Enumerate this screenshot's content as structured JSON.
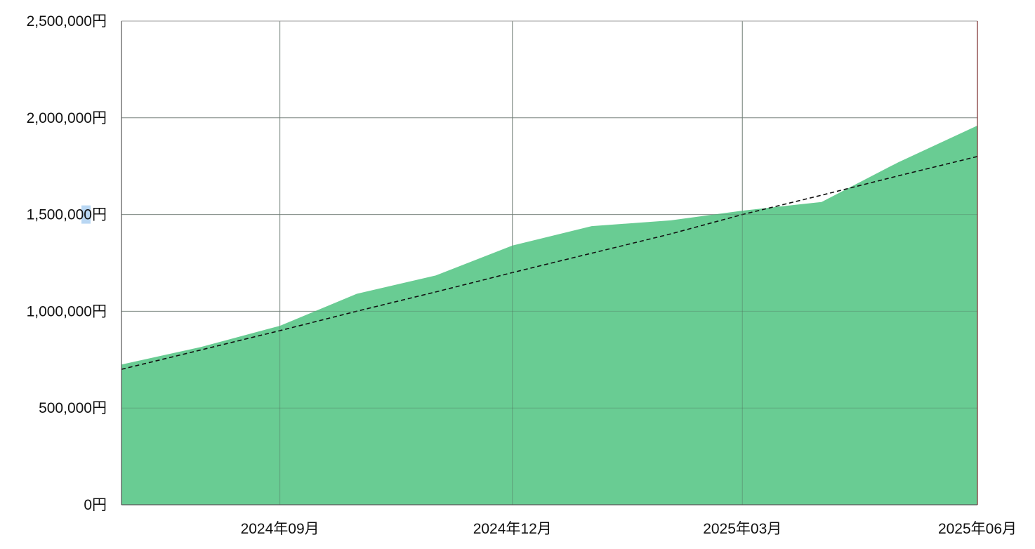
{
  "chart_data": {
    "type": "area",
    "title": "",
    "xlabel": "",
    "ylabel": "",
    "x_range": [
      "2024-07-01",
      "2025-06-01"
    ],
    "ylim": [
      0,
      2500000
    ],
    "y_ticks": [
      {
        "value": 0,
        "label": "0円"
      },
      {
        "value": 500000,
        "label": "500,000円"
      },
      {
        "value": 1000000,
        "label": "1,000,000円"
      },
      {
        "value": 1500000,
        "label": "1,500,000円"
      },
      {
        "value": 2000000,
        "label": "2,000,000円"
      },
      {
        "value": 2500000,
        "label": "2,500,000円"
      }
    ],
    "x_ticks": [
      {
        "date": "2024-09-01",
        "label": "2024年09月"
      },
      {
        "date": "2024-12-01",
        "label": "2024年12月"
      },
      {
        "date": "2025-03-01",
        "label": "2025年03月"
      },
      {
        "date": "2025-06-01",
        "label": "2025年06月"
      }
    ],
    "series": [
      {
        "kind": "area",
        "color": "#69cc93",
        "points": [
          {
            "x": "2024-07-01",
            "y": 725000
          },
          {
            "x": "2024-08-01",
            "y": 815000
          },
          {
            "x": "2024-09-01",
            "y": 925000
          },
          {
            "x": "2024-10-01",
            "y": 1090000
          },
          {
            "x": "2024-11-01",
            "y": 1185000
          },
          {
            "x": "2024-12-01",
            "y": 1340000
          },
          {
            "x": "2025-01-01",
            "y": 1440000
          },
          {
            "x": "2025-02-01",
            "y": 1470000
          },
          {
            "x": "2025-03-01",
            "y": 1520000
          },
          {
            "x": "2025-04-01",
            "y": 1565000
          },
          {
            "x": "2025-05-01",
            "y": 1770000
          },
          {
            "x": "2025-06-01",
            "y": 1960000
          }
        ]
      },
      {
        "kind": "line",
        "style": "dashed",
        "color": "#111111",
        "points": [
          {
            "x": "2024-07-01",
            "y": 700000
          },
          {
            "x": "2024-08-01",
            "y": 800000
          },
          {
            "x": "2024-09-01",
            "y": 900000
          },
          {
            "x": "2024-10-01",
            "y": 1000000
          },
          {
            "x": "2024-11-01",
            "y": 1100000
          },
          {
            "x": "2024-12-01",
            "y": 1200000
          },
          {
            "x": "2025-01-01",
            "y": 1300000
          },
          {
            "x": "2025-02-01",
            "y": 1400000
          },
          {
            "x": "2025-03-01",
            "y": 1500000
          },
          {
            "x": "2025-04-01",
            "y": 1600000
          },
          {
            "x": "2025-05-01",
            "y": 1700000
          },
          {
            "x": "2025-06-01",
            "y": 1800000
          }
        ]
      }
    ],
    "grid": true,
    "legend": "none",
    "right_edge_color": "#7a2a2a",
    "selection_highlight_color": "#b9d7f3"
  }
}
